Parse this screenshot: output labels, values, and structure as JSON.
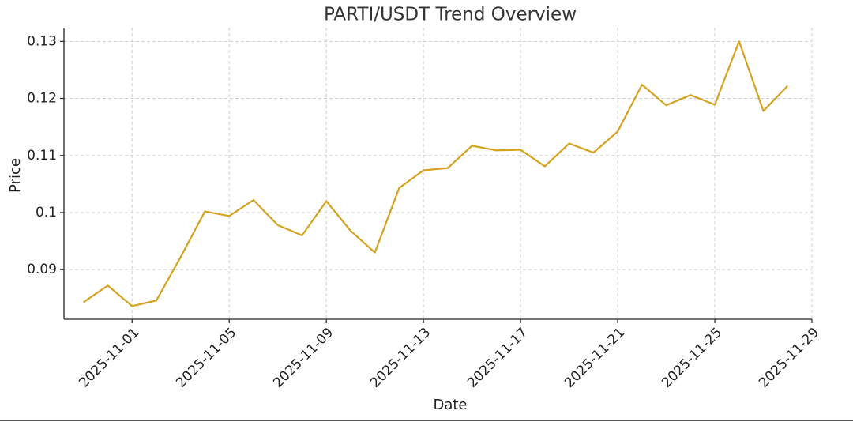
{
  "chart_data": {
    "type": "line",
    "title": "PARTI/USDT Trend Overview",
    "x_label": "Date",
    "y_label": "Price",
    "x": [
      "2025-10-30",
      "2025-10-31",
      "2025-11-01",
      "2025-11-02",
      "2025-11-03",
      "2025-11-04",
      "2025-11-05",
      "2025-11-06",
      "2025-11-07",
      "2025-11-08",
      "2025-11-09",
      "2025-11-10",
      "2025-11-11",
      "2025-11-12",
      "2025-11-13",
      "2025-11-14",
      "2025-11-15",
      "2025-11-16",
      "2025-11-17",
      "2025-11-18",
      "2025-11-19",
      "2025-11-20",
      "2025-11-21",
      "2025-11-22",
      "2025-11-23",
      "2025-11-24",
      "2025-11-25",
      "2025-11-26",
      "2025-11-27",
      "2025-11-28"
    ],
    "series": [
      {
        "name": "PARTI/USDT",
        "color": "#d4a21f",
        "values": [
          0.0843,
          0.0872,
          0.0836,
          0.0846,
          0.0922,
          0.1002,
          0.0994,
          0.1022,
          0.0978,
          0.096,
          0.102,
          0.0968,
          0.093,
          0.1043,
          0.1074,
          0.1078,
          0.1117,
          0.1109,
          0.111,
          0.1081,
          0.1121,
          0.1105,
          0.1142,
          0.1224,
          0.1188,
          0.1206,
          0.1189,
          0.13,
          0.1178,
          0.1222
        ]
      }
    ],
    "xlim": [
      "2025-10-29",
      "2025-11-29"
    ],
    "xticks": [
      "2025-11-01",
      "2025-11-05",
      "2025-11-09",
      "2025-11-13",
      "2025-11-17",
      "2025-11-21",
      "2025-11-25",
      "2025-11-29"
    ],
    "ylim": [
      0.0813,
      0.1324
    ],
    "yticks": [
      0.09,
      0.1,
      0.11,
      0.12,
      0.13
    ],
    "grid": true
  }
}
